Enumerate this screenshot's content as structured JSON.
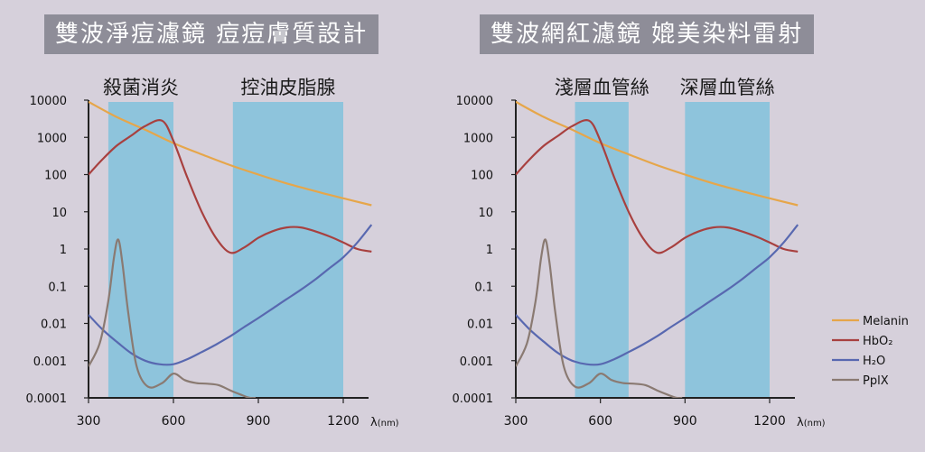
{
  "colors": {
    "background": "#d6d0db",
    "title_bar": "#8e8d98",
    "band": "#8ec4dc",
    "melanin": "#e6a64a",
    "hbo2": "#a8403f",
    "h2o": "#5868b0",
    "pplx": "#8a7a72",
    "axis": "#222222"
  },
  "chart_data": [
    {
      "type": "line",
      "title": "雙波淨痘濾鏡 痘痘膚質設計",
      "xlabel": "λ(nm)",
      "xlabel_main": "λ",
      "xlabel_unit": "(nm)",
      "ylabel": "",
      "log_y": true,
      "xlim": [
        300,
        1200
      ],
      "ylim": [
        0.0001,
        10000
      ],
      "x_ticks": [
        300,
        600,
        900,
        1200
      ],
      "x_tick_labels": [
        "300",
        "600",
        "900",
        "1200"
      ],
      "y_ticks": [
        10000,
        1000,
        100,
        10,
        1,
        0.1,
        0.01,
        0.001,
        0.0001
      ],
      "y_tick_labels": [
        "10000",
        "1000",
        "100",
        "10",
        "1",
        "0.1",
        "0.01",
        "0.001",
        "0.0001"
      ],
      "bands": [
        {
          "label": "殺菌消炎",
          "x_start": 370,
          "x_end": 600
        },
        {
          "label": "控油皮脂腺",
          "x_start": 810,
          "x_end": 1200
        }
      ],
      "series": [
        {
          "name": "Melanin",
          "color_key": "melanin",
          "x": [
            300,
            400,
            500,
            600,
            700,
            800,
            900,
            1000,
            1100,
            1200,
            1300
          ],
          "y": [
            9000,
            3500,
            1600,
            700,
            350,
            180,
            100,
            58,
            36,
            23,
            15
          ]
        },
        {
          "name": "HbO2",
          "color_key": "hbo2",
          "x": [
            300,
            350,
            400,
            450,
            500,
            560,
            600,
            650,
            700,
            750,
            800,
            850,
            900,
            950,
            1000,
            1050,
            1100,
            1150,
            1200,
            1250,
            1300
          ],
          "y": [
            100,
            260,
            600,
            1100,
            2000,
            2800,
            800,
            80,
            10,
            2,
            0.8,
            1.1,
            2,
            3,
            3.8,
            3.8,
            3,
            2.2,
            1.5,
            1.0,
            0.85
          ]
        },
        {
          "name": "H₂O",
          "color_key": "h2o",
          "x": [
            300,
            350,
            400,
            450,
            500,
            550,
            600,
            650,
            700,
            750,
            800,
            850,
            900,
            950,
            1000,
            1050,
            1100,
            1150,
            1200,
            1250,
            1300
          ],
          "y": [
            0.017,
            0.0068,
            0.0032,
            0.0016,
            0.001,
            0.0008,
            0.0008,
            0.0011,
            0.0017,
            0.0027,
            0.0045,
            0.008,
            0.014,
            0.025,
            0.045,
            0.08,
            0.15,
            0.3,
            0.6,
            1.5,
            4.5
          ]
        },
        {
          "name": "PpIX",
          "color_key": "pplx",
          "x": [
            300,
            340,
            370,
            390,
            405,
            420,
            440,
            470,
            510,
            560,
            600,
            640,
            680,
            720,
            760,
            800,
            840,
            870,
            890
          ],
          "y": [
            0.0007,
            0.003,
            0.04,
            0.6,
            1.8,
            0.4,
            0.02,
            0.0007,
            0.0002,
            0.00025,
            0.00045,
            0.0003,
            0.00025,
            0.00024,
            0.00022,
            0.00016,
            0.00012,
            0.0001,
            0.0001
          ]
        }
      ]
    },
    {
      "type": "line",
      "title": "雙波網紅濾鏡 媲美染料雷射",
      "xlabel": "λ(nm)",
      "xlabel_main": "λ",
      "xlabel_unit": "(nm)",
      "ylabel": "",
      "log_y": true,
      "xlim": [
        300,
        1200
      ],
      "ylim": [
        0.0001,
        10000
      ],
      "x_ticks": [
        300,
        600,
        900,
        1200
      ],
      "x_tick_labels": [
        "300",
        "600",
        "900",
        "1200"
      ],
      "y_ticks": [
        10000,
        1000,
        100,
        10,
        1,
        0.1,
        0.01,
        0.001,
        0.0001
      ],
      "y_tick_labels": [
        "10000",
        "1000",
        "100",
        "10",
        "1",
        "0.1",
        "0.01",
        "0.001",
        "0.0001"
      ],
      "bands": [
        {
          "label": "淺層血管絲",
          "x_start": 510,
          "x_end": 700
        },
        {
          "label": "深層血管絲",
          "x_start": 900,
          "x_end": 1200
        }
      ],
      "series": [
        {
          "name": "Melanin",
          "color_key": "melanin",
          "x": [
            300,
            400,
            500,
            600,
            700,
            800,
            900,
            1000,
            1100,
            1200,
            1300
          ],
          "y": [
            9000,
            3500,
            1600,
            700,
            350,
            180,
            100,
            58,
            36,
            23,
            15
          ]
        },
        {
          "name": "HbO2",
          "color_key": "hbo2",
          "x": [
            300,
            350,
            400,
            450,
            500,
            560,
            600,
            650,
            700,
            750,
            800,
            850,
            900,
            950,
            1000,
            1050,
            1100,
            1150,
            1200,
            1250,
            1300
          ],
          "y": [
            100,
            260,
            600,
            1100,
            2000,
            2800,
            800,
            80,
            10,
            2,
            0.8,
            1.1,
            2,
            3,
            3.8,
            3.8,
            3,
            2.2,
            1.5,
            1.0,
            0.85
          ]
        },
        {
          "name": "H₂O",
          "color_key": "h2o",
          "x": [
            300,
            350,
            400,
            450,
            500,
            550,
            600,
            650,
            700,
            750,
            800,
            850,
            900,
            950,
            1000,
            1050,
            1100,
            1150,
            1200,
            1250,
            1300
          ],
          "y": [
            0.017,
            0.0068,
            0.0032,
            0.0016,
            0.001,
            0.0008,
            0.0008,
            0.0011,
            0.0017,
            0.0027,
            0.0045,
            0.008,
            0.014,
            0.025,
            0.045,
            0.08,
            0.15,
            0.3,
            0.6,
            1.5,
            4.5
          ]
        },
        {
          "name": "PpIX",
          "color_key": "pplx",
          "x": [
            300,
            340,
            370,
            390,
            405,
            420,
            440,
            470,
            510,
            560,
            600,
            640,
            680,
            720,
            760,
            800,
            840,
            870,
            890
          ],
          "y": [
            0.0007,
            0.003,
            0.04,
            0.6,
            1.8,
            0.4,
            0.02,
            0.0007,
            0.0002,
            0.00025,
            0.00045,
            0.0003,
            0.00025,
            0.00024,
            0.00022,
            0.00016,
            0.00012,
            0.0001,
            0.0001
          ]
        }
      ]
    }
  ],
  "legend": {
    "placement": "right",
    "items": [
      {
        "label": "Melanin",
        "color_key": "melanin"
      },
      {
        "label": "HbO₂",
        "color_key": "hbo2"
      },
      {
        "label": "H₂O",
        "color_key": "h2o"
      },
      {
        "label": "PplX",
        "color_key": "pplx"
      }
    ]
  }
}
